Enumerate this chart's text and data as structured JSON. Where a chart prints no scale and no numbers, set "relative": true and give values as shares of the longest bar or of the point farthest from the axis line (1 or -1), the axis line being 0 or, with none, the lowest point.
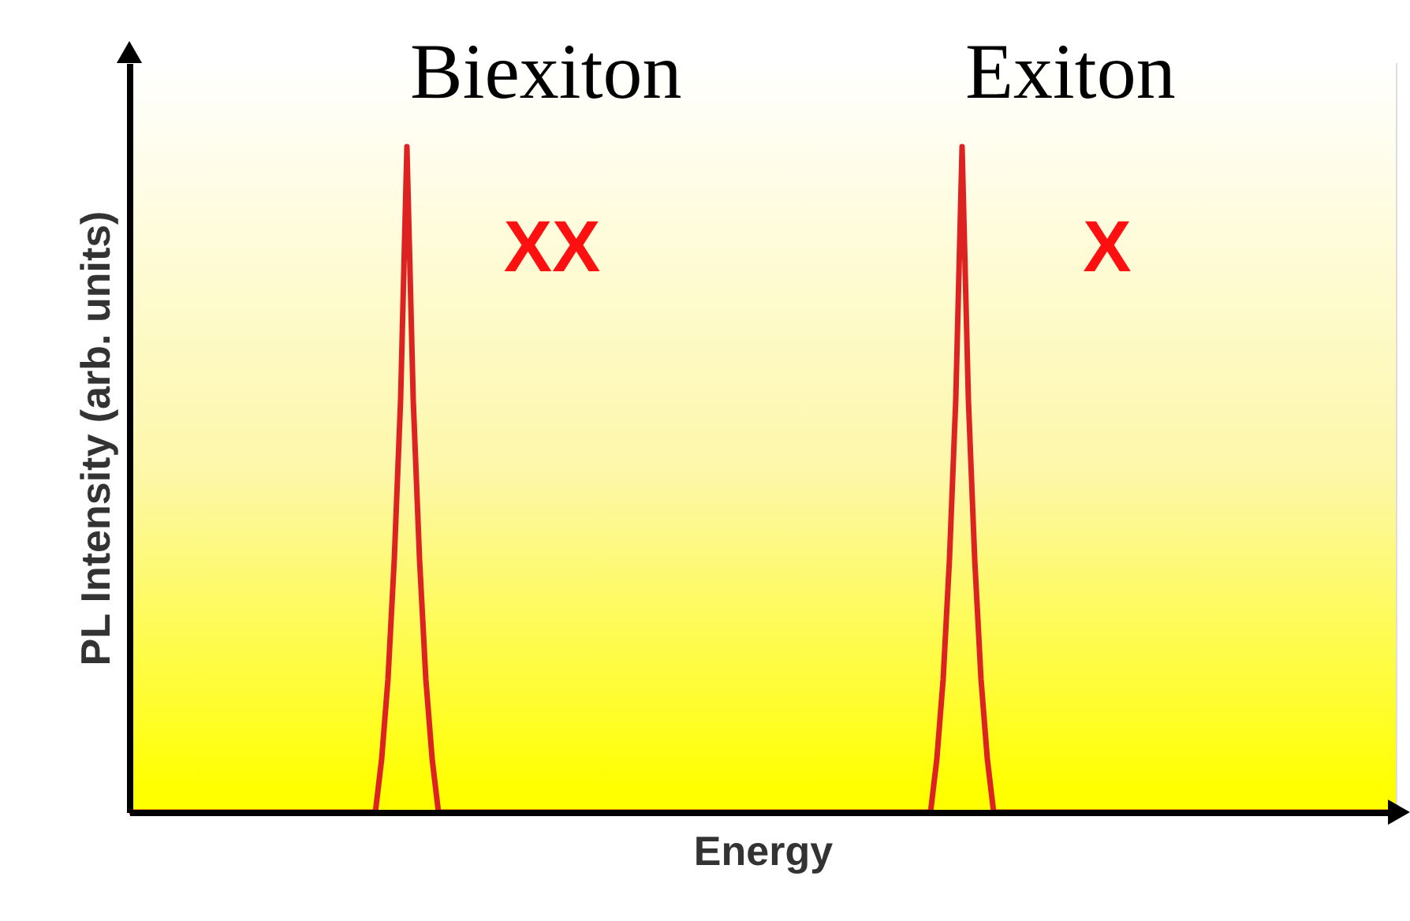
{
  "chart_data": {
    "type": "line",
    "relative": true,
    "xlabel": "Energy",
    "ylabel": "PL Intensity (arb. units)",
    "annotations": [
      "Biexiton",
      "Exiton",
      "XX",
      "X"
    ],
    "categories": [
      null,
      null,
      null,
      null,
      null,
      null,
      null,
      null,
      null,
      null,
      null,
      null,
      null,
      null,
      null,
      null,
      null,
      null,
      null,
      null,
      null,
      null,
      null,
      null,
      null,
      null,
      null,
      null,
      null,
      null,
      null,
      null,
      null,
      null,
      null,
      null,
      null,
      null,
      null,
      null,
      null,
      null,
      null,
      null,
      null,
      null,
      null,
      null,
      null,
      null,
      null,
      null,
      null,
      null,
      null,
      null,
      null,
      null,
      null,
      null,
      null,
      null,
      null,
      null,
      null,
      null,
      null,
      null,
      null,
      null,
      null,
      null,
      null,
      null,
      null,
      null,
      null,
      null,
      null,
      null,
      null,
      null,
      null,
      null,
      null,
      null,
      null,
      null,
      null,
      null,
      null,
      null,
      null,
      null,
      null,
      null,
      null,
      null,
      null,
      null,
      null,
      null,
      null,
      null,
      null,
      null,
      null,
      null,
      null,
      null,
      null,
      null,
      null,
      null,
      null,
      null,
      null,
      null,
      null,
      null,
      null,
      null,
      null,
      null,
      null,
      null,
      null,
      null,
      null,
      null,
      null,
      null,
      null,
      null,
      null,
      null,
      null,
      null,
      null,
      null,
      null,
      null,
      null,
      null,
      null,
      null,
      null,
      null,
      null,
      null,
      null,
      null,
      null,
      null,
      null,
      null,
      null,
      null,
      null,
      null,
      null,
      null,
      null,
      null,
      null,
      null,
      null,
      null,
      null,
      null,
      null,
      null,
      null,
      null,
      null,
      null,
      null,
      null,
      null,
      null,
      null,
      null,
      null,
      null,
      null,
      null,
      null,
      null,
      null,
      null,
      null,
      null,
      null,
      null,
      null,
      null,
      null,
      null,
      null,
      null,
      null
    ],
    "series": [
      {
        "color": "#dd2222",
        "values": [
          0,
          0,
          0,
          0,
          0,
          0,
          0,
          0,
          0,
          0,
          0,
          0,
          0,
          0,
          0,
          0,
          0,
          0,
          0,
          0,
          0,
          0,
          0,
          0,
          0,
          0,
          0,
          0,
          0,
          0,
          0,
          0,
          0,
          0,
          0,
          0,
          0,
          0,
          0,
          0,
          0.08,
          0.2,
          0.38,
          0.62,
          1,
          0.62,
          0.38,
          0.2,
          0.08,
          0,
          0,
          0,
          0,
          0,
          0,
          0,
          0,
          0,
          0,
          0,
          0,
          0,
          0,
          0,
          0,
          0,
          0,
          0,
          0,
          0,
          0,
          0,
          0,
          0,
          0,
          0,
          0,
          0,
          0,
          0,
          0,
          0,
          0,
          0,
          0,
          0,
          0,
          0,
          0,
          0,
          0,
          0,
          0,
          0,
          0,
          0,
          0,
          0,
          0,
          0,
          0,
          0,
          0,
          0,
          0,
          0,
          0,
          0,
          0,
          0,
          0,
          0,
          0,
          0,
          0,
          0,
          0,
          0,
          0,
          0,
          0,
          0,
          0,
          0,
          0,
          0,
          0,
          0,
          0.08,
          0.2,
          0.38,
          0.62,
          1,
          0.62,
          0.38,
          0.2,
          0.08,
          0,
          0,
          0,
          0,
          0,
          0,
          0,
          0,
          0,
          0,
          0,
          0,
          0,
          0,
          0,
          0,
          0,
          0,
          0,
          0,
          0,
          0,
          0,
          0,
          0,
          0,
          0,
          0,
          0,
          0,
          0,
          0,
          0,
          0,
          0,
          0,
          0,
          0,
          0,
          0,
          0,
          0,
          0,
          0,
          0,
          0,
          0,
          0,
          0,
          0,
          0,
          0,
          0,
          0,
          0,
          0,
          0,
          0,
          0,
          0,
          0,
          0,
          0,
          0
        ]
      }
    ],
    "marker": "none",
    "line_style": "solid",
    "tick_labels": false
  }
}
